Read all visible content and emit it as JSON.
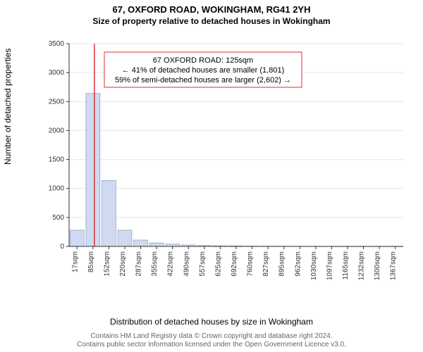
{
  "title": "67, OXFORD ROAD, WOKINGHAM, RG41 2YH",
  "subtitle": "Size of property relative to detached houses in Wokingham",
  "title_fontsize": 13,
  "subtitle_fontsize": 12,
  "ylabel": "Number of detached properties",
  "xlabel": "Distribution of detached houses by size in Wokingham",
  "axis_label_fontsize": 12,
  "chart": {
    "type": "bar",
    "background_color": "#ffffff",
    "grid_color": "#e6e6e6",
    "axis_color": "#333333",
    "bar_fill": "#cfd9ef",
    "bar_stroke": "#7c8fb8",
    "marker_line_color": "#d93232",
    "tick_fontsize": 10,
    "tick_color": "#333333",
    "ylim": [
      0,
      3500
    ],
    "ytick_step": 500,
    "yticks": [
      0,
      500,
      1000,
      1500,
      2000,
      2500,
      3000,
      3500
    ],
    "x_categories": [
      "17sqm",
      "85sqm",
      "152sqm",
      "220sqm",
      "287sqm",
      "355sqm",
      "422sqm",
      "490sqm",
      "557sqm",
      "625sqm",
      "692sqm",
      "760sqm",
      "827sqm",
      "895sqm",
      "962sqm",
      "1030sqm",
      "1097sqm",
      "1165sqm",
      "1232sqm",
      "1300sqm",
      "1367sqm"
    ],
    "values": [
      280,
      2640,
      1140,
      280,
      110,
      60,
      40,
      25,
      15,
      10,
      8,
      6,
      5,
      4,
      3,
      2,
      2,
      1,
      1,
      1,
      1
    ],
    "marker_index": 1,
    "marker_position_within_bin": 0.6,
    "bar_width_ratio": 0.88
  },
  "annotation": {
    "lines": [
      "67 OXFORD ROAD: 125sqm",
      "← 41% of detached houses are smaller (1,801)",
      "59% of semi-detached houses are larger (2,602) →"
    ],
    "border_color": "#d93232",
    "background_color": "#ffffff",
    "font_size": 11,
    "text_color": "#000000"
  },
  "footer": {
    "line1": "Contains HM Land Registry data © Crown copyright and database right 2024.",
    "line2": "Contains public sector information licensed under the Open Government Licence v3.0.",
    "color": "#666666",
    "fontsize": 10
  }
}
